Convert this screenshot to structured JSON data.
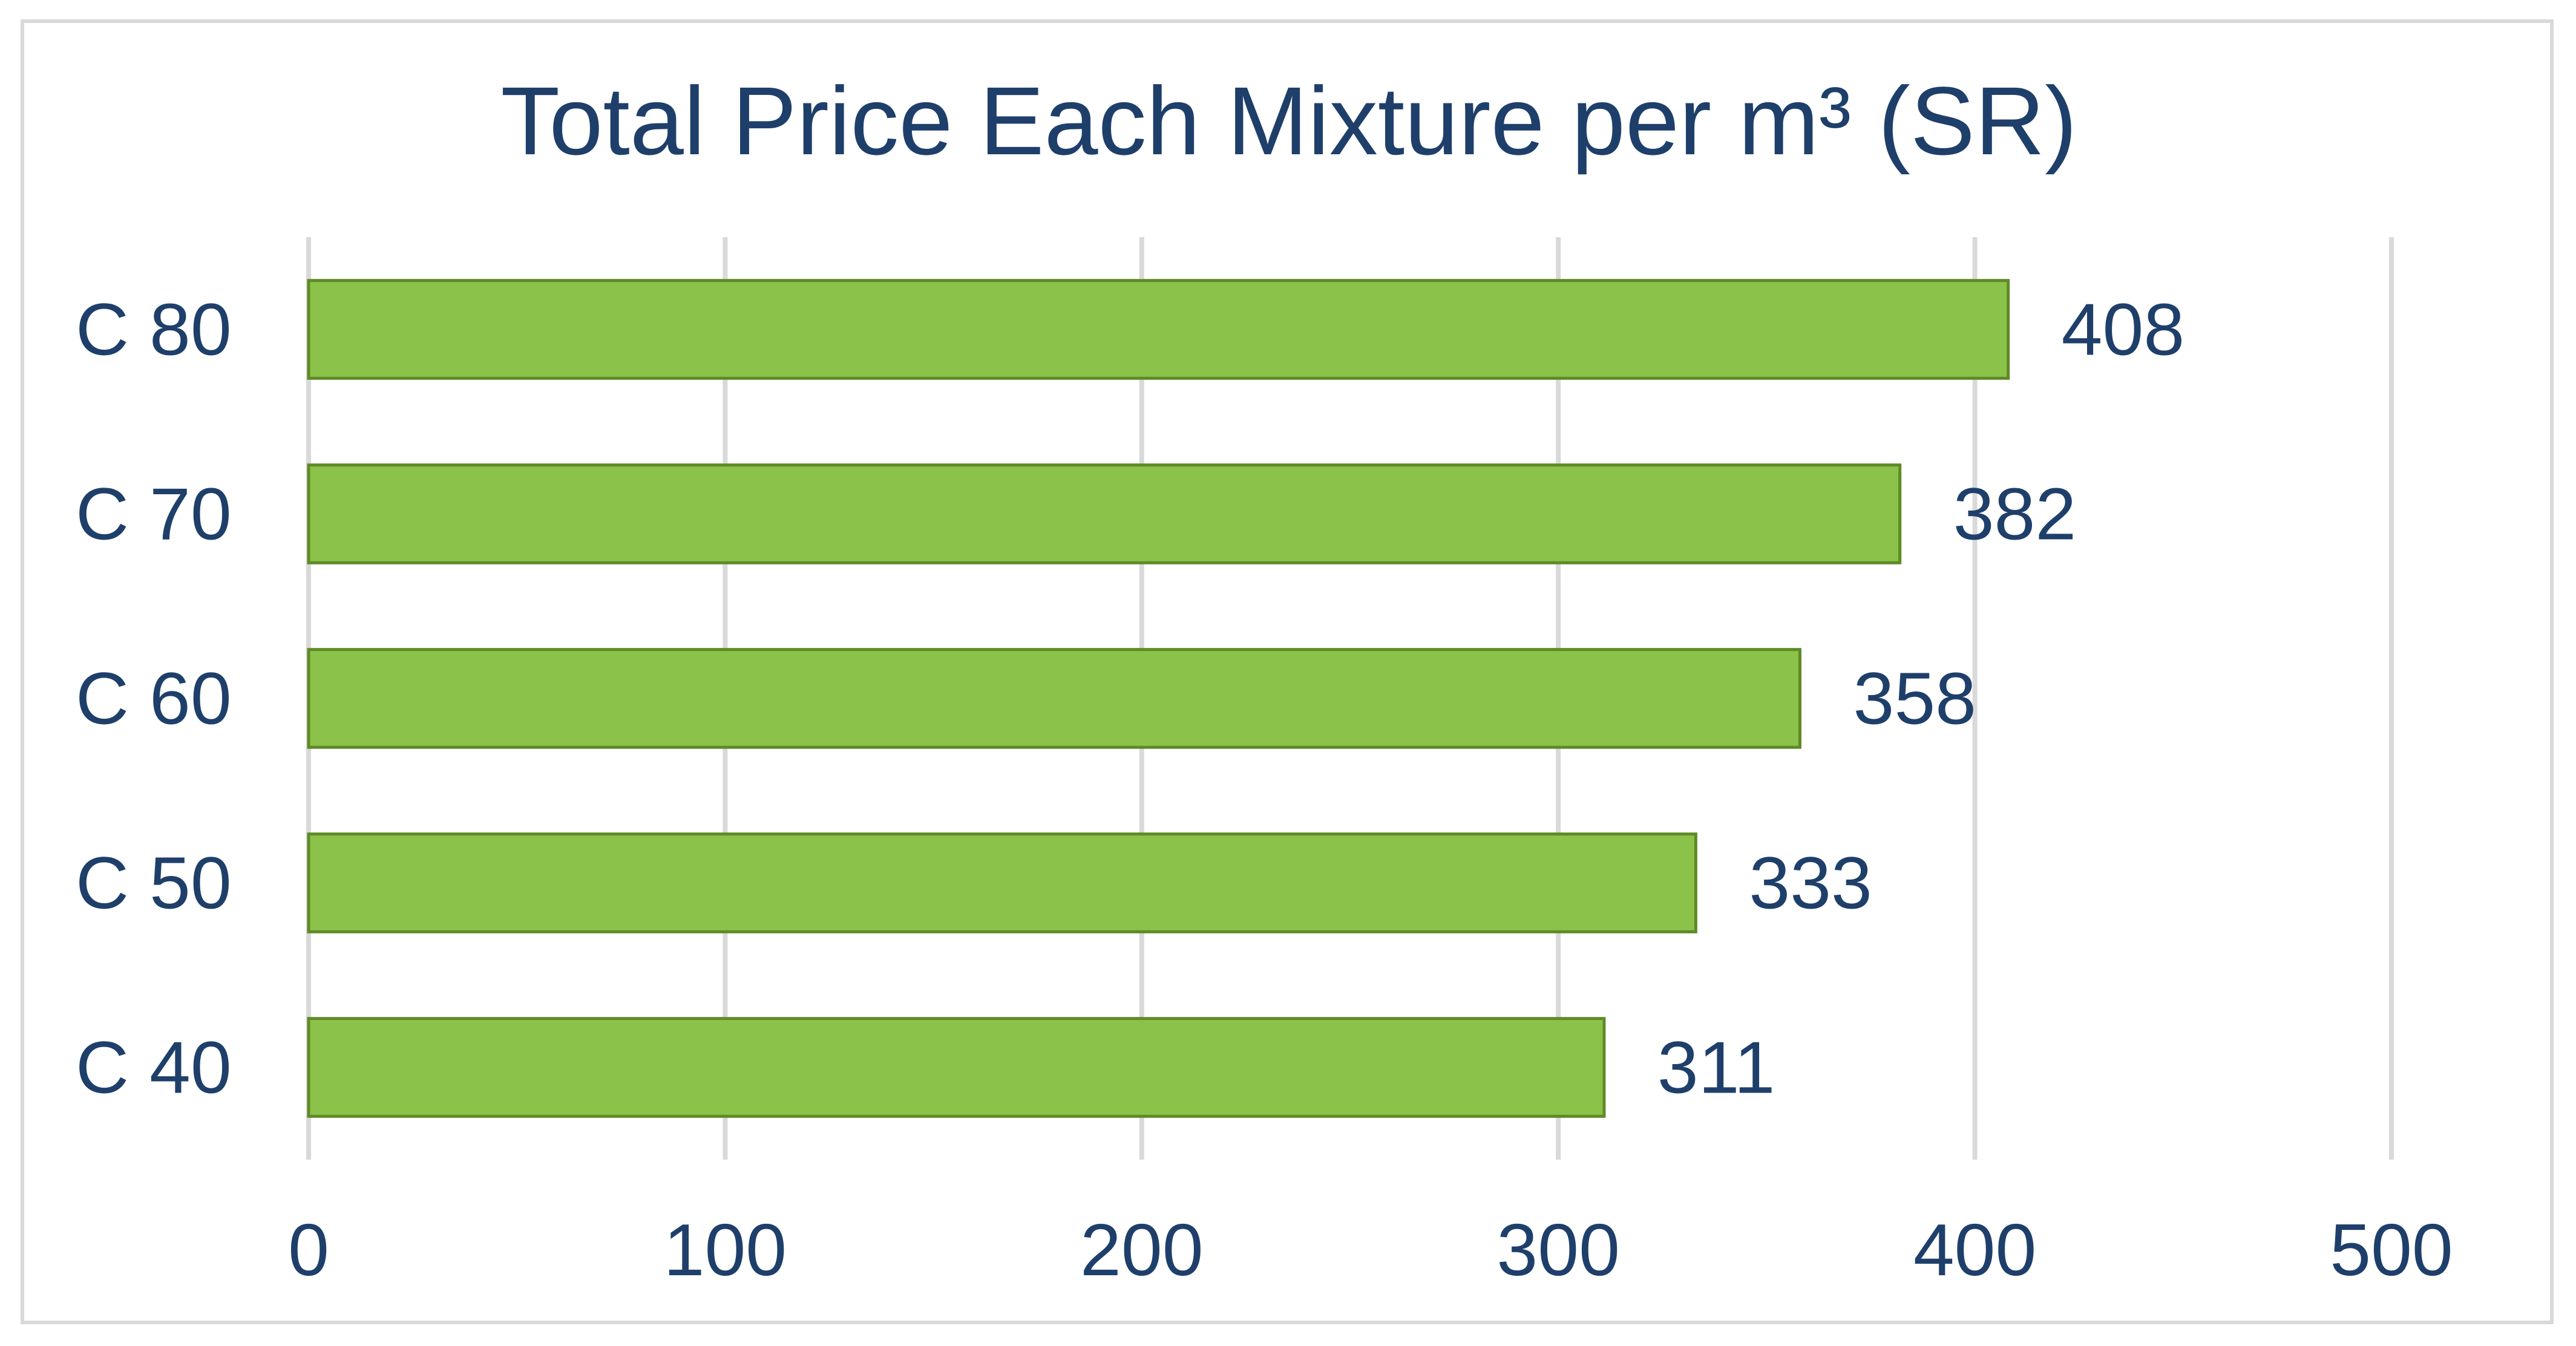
{
  "chart_data": {
    "type": "bar",
    "orientation": "horizontal",
    "title": "Total Price Each Mixture per m³ (SR)",
    "xlabel": "",
    "ylabel": "",
    "categories": [
      "C 80",
      "C 70",
      "C 60",
      "C 50",
      "C 40"
    ],
    "values": [
      408,
      382,
      358,
      333,
      311
    ],
    "data_labels": [
      "408",
      "382",
      "358",
      "333",
      "311"
    ],
    "xlim": [
      0,
      500
    ],
    "x_ticks": [
      0,
      100,
      200,
      300,
      400,
      500
    ],
    "x_tick_labels": [
      "0",
      "100",
      "200",
      "300",
      "400",
      "500"
    ],
    "grid": true,
    "legend": "none",
    "colors": {
      "bar_fill": "#8bc34a",
      "bar_stroke": "#5f8a26",
      "text": "#1f3f6b",
      "grid": "#d9d9d9"
    }
  }
}
